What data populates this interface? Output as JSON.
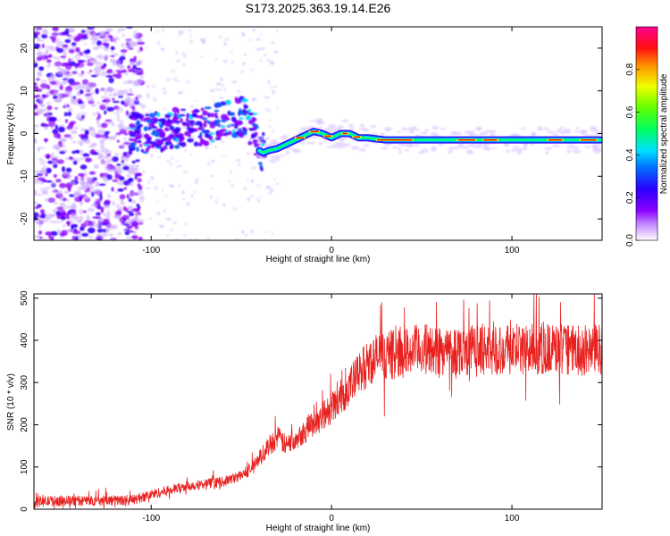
{
  "title": "S173.2025.363.19.14.E26",
  "colors": {
    "snr_line": "#e8211f",
    "background": "#ffffff",
    "axis": "#000000",
    "colormap": [
      "#ffffff",
      "#8b00ff",
      "#3a00ff",
      "#0057ff",
      "#00d5ff",
      "#00ff7a",
      "#5cff00",
      "#f2ff00",
      "#ff8a00",
      "#ff0000",
      "#ff0080"
    ]
  },
  "chart_data": [
    {
      "type": "heatmap",
      "name": "spectrogram",
      "title": "S173.2025.363.19.14.E26",
      "xlabel": "Height of straight line (km)",
      "ylabel": "Frequency (Hz)",
      "xlim": [
        -165,
        150
      ],
      "ylim": [
        -25,
        25
      ],
      "x_ticks": [
        -100,
        0,
        100
      ],
      "x_tick_labels": [
        "-100",
        "0",
        "100"
      ],
      "y_ticks": [
        -20,
        -10,
        0,
        10,
        20
      ],
      "y_tick_labels": [
        "-20",
        "-10",
        "0",
        "10",
        "20"
      ],
      "ridge": {
        "description_x": [
          -110,
          -100,
          -90,
          -80,
          -70,
          -60,
          -55,
          -50,
          -45,
          -42,
          -40,
          -38,
          -35,
          -30,
          -25,
          -20,
          -15,
          -10,
          -5,
          0,
          5,
          10,
          15,
          20,
          30,
          50,
          70,
          90,
          110,
          130,
          147
        ],
        "frequency": [
          0,
          0,
          1,
          1.5,
          2,
          3,
          3.5,
          4,
          2,
          0,
          -4,
          -4.5,
          -4,
          -3.5,
          -2.5,
          -1.5,
          -0.5,
          0.5,
          0,
          -1,
          0,
          0,
          -1,
          -1,
          -1.5,
          -1.5,
          -1.5,
          -1.5,
          -1.5,
          -1.5,
          -1.5
        ]
      },
      "colorbar": {
        "label": "Normalized spectral amplitude",
        "range": [
          0,
          1
        ],
        "ticks": [
          0.0,
          0.2,
          0.4,
          0.6,
          0.8
        ],
        "tick_labels": [
          "0.0",
          "0.2",
          "0.4",
          "0.6",
          "0.8"
        ]
      }
    },
    {
      "type": "line",
      "name": "snr",
      "xlabel": "Height of straight line (km)",
      "ylabel": "SNR (10 * v/v)",
      "xlim": [
        -165,
        150
      ],
      "ylim": [
        0,
        510
      ],
      "x_ticks": [
        -100,
        0,
        100
      ],
      "x_tick_labels": [
        "-100",
        "0",
        "100"
      ],
      "y_ticks": [
        0,
        100,
        200,
        300,
        400,
        500
      ],
      "y_tick_labels": [
        "0",
        "100",
        "200",
        "300",
        "400",
        "500"
      ],
      "series": [
        {
          "name": "SNR",
          "x": [
            -165,
            -150,
            -130,
            -110,
            -100,
            -90,
            -80,
            -70,
            -60,
            -50,
            -45,
            -40,
            -35,
            -30,
            -25,
            -20,
            -15,
            -10,
            -5,
            0,
            5,
            10,
            15,
            20,
            25,
            30,
            40,
            50,
            60,
            80,
            100,
            120,
            140,
            150
          ],
          "y": [
            18,
            20,
            20,
            22,
            35,
            45,
            55,
            60,
            65,
            80,
            95,
            120,
            150,
            170,
            150,
            170,
            185,
            205,
            220,
            240,
            265,
            290,
            320,
            345,
            360,
            365,
            370,
            380,
            375,
            380,
            378,
            380,
            375,
            380
          ]
        }
      ]
    }
  ]
}
